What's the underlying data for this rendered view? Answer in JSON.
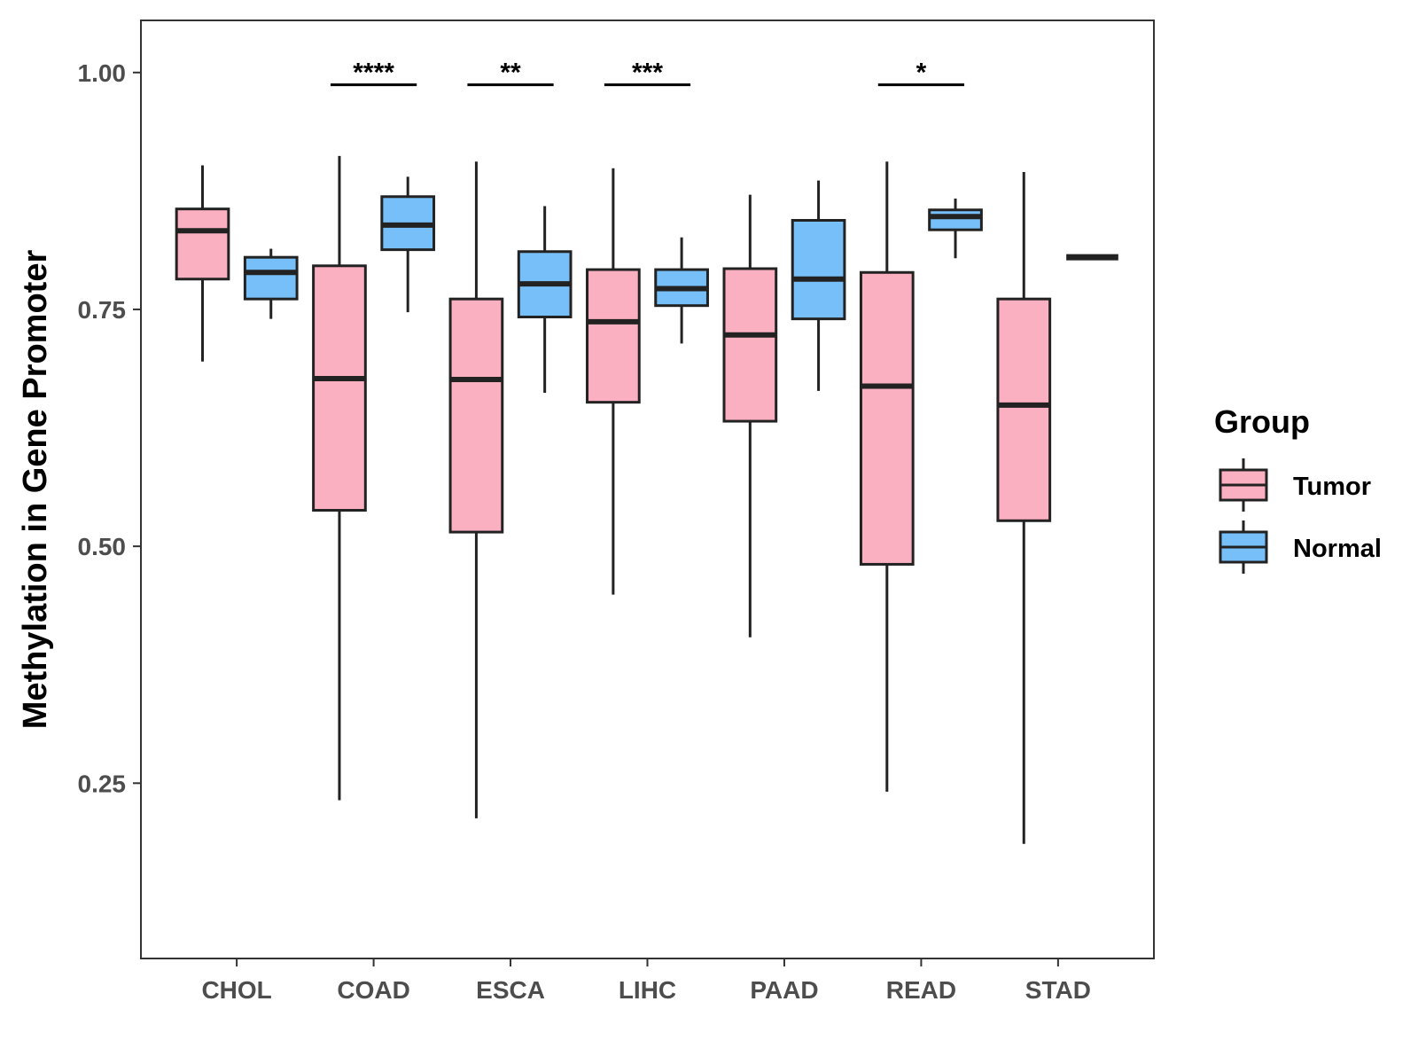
{
  "chart_data": {
    "type": "boxplot",
    "title": "",
    "xlabel": "",
    "ylabel": "Methylation in Gene Promoter",
    "ylim": [
      0.065,
      1.055
    ],
    "yticks": [
      0.25,
      0.5,
      0.75,
      1.0
    ],
    "ytick_labels": [
      "0.25",
      "0.50",
      "0.75",
      "1.00"
    ],
    "categories": [
      "CHOL",
      "COAD",
      "ESCA",
      "LIHC",
      "PAAD",
      "READ",
      "STAD"
    ],
    "grid": false,
    "legend": {
      "title": "Group",
      "placement": "right",
      "entries": [
        {
          "name": "Tumor",
          "color": "#FBB0C2"
        },
        {
          "name": "Normal",
          "color": "#76BFF8"
        }
      ]
    },
    "series": [
      {
        "name": "Tumor",
        "color": "#FBB0C2",
        "boxes": [
          {
            "category": "CHOL",
            "min": 0.695,
            "q1": 0.782,
            "median": 0.833,
            "q3": 0.856,
            "max": 0.902
          },
          {
            "category": "COAD",
            "min": 0.232,
            "q1": 0.538,
            "median": 0.677,
            "q3": 0.796,
            "max": 0.912
          },
          {
            "category": "ESCA",
            "min": 0.213,
            "q1": 0.515,
            "median": 0.676,
            "q3": 0.761,
            "max": 0.906
          },
          {
            "category": "LIHC",
            "min": 0.449,
            "q1": 0.652,
            "median": 0.737,
            "q3": 0.792,
            "max": 0.899
          },
          {
            "category": "PAAD",
            "min": 0.404,
            "q1": 0.632,
            "median": 0.723,
            "q3": 0.793,
            "max": 0.871
          },
          {
            "category": "READ",
            "min": 0.241,
            "q1": 0.481,
            "median": 0.669,
            "q3": 0.789,
            "max": 0.906
          },
          {
            "category": "STAD",
            "min": 0.186,
            "q1": 0.527,
            "median": 0.649,
            "q3": 0.761,
            "max": 0.895
          }
        ]
      },
      {
        "name": "Normal",
        "color": "#76BFF8",
        "boxes": [
          {
            "category": "CHOL",
            "min": 0.74,
            "q1": 0.761,
            "median": 0.789,
            "q3": 0.805,
            "max": 0.814
          },
          {
            "category": "COAD",
            "min": 0.747,
            "q1": 0.813,
            "median": 0.839,
            "q3": 0.869,
            "max": 0.89
          },
          {
            "category": "ESCA",
            "min": 0.662,
            "q1": 0.742,
            "median": 0.777,
            "q3": 0.811,
            "max": 0.859
          },
          {
            "category": "LIHC",
            "min": 0.714,
            "q1": 0.754,
            "median": 0.772,
            "q3": 0.792,
            "max": 0.826
          },
          {
            "category": "PAAD",
            "min": 0.664,
            "q1": 0.74,
            "median": 0.782,
            "q3": 0.844,
            "max": 0.886
          },
          {
            "category": "READ",
            "min": 0.804,
            "q1": 0.834,
            "median": 0.848,
            "q3": 0.855,
            "max": 0.867
          },
          {
            "category": "STAD",
            "min": 0.805,
            "q1": 0.805,
            "median": 0.805,
            "q3": 0.805,
            "max": 0.805
          }
        ]
      }
    ],
    "annotations": [
      {
        "category": "COAD",
        "label": "****",
        "y": 0.987
      },
      {
        "category": "ESCA",
        "label": "**",
        "y": 0.987
      },
      {
        "category": "LIHC",
        "label": "***",
        "y": 0.987
      },
      {
        "category": "READ",
        "label": "*",
        "y": 0.987
      }
    ]
  }
}
